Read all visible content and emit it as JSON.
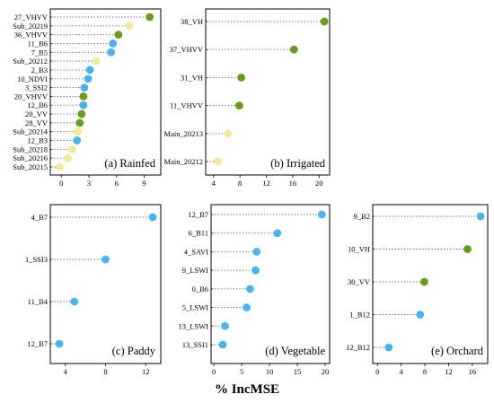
{
  "colors": {
    "yellow": "#f3e89c",
    "green": "#6a9a22",
    "blue": "#4fb3ea"
  },
  "xlabel": "% IncMSE",
  "chart_data": [
    {
      "type": "scatter",
      "title": "(a) Rainfed",
      "xlim": [
        -1.2,
        10.8
      ],
      "xticks": [
        0,
        3,
        6,
        9
      ],
      "grid": false,
      "categories": [
        "27_VHVV",
        "Sub_20219",
        "36_VHVV",
        "11_B6",
        "7_B5",
        "Sub_20212",
        "2_B3",
        "10_NDVI",
        "3_SSI2",
        "20_VHVV",
        "12_B6",
        "20_VV",
        "28_VV",
        "Sub_20214",
        "12_B3",
        "Sub_20218",
        "Sub_20216",
        "Sub_20215"
      ],
      "values": [
        9.6,
        7.4,
        6.2,
        5.6,
        5.4,
        3.8,
        3.1,
        2.9,
        2.5,
        2.4,
        2.4,
        2.2,
        2.0,
        1.8,
        1.7,
        1.2,
        0.7,
        -0.2
      ],
      "colors": [
        "green",
        "yellow",
        "green",
        "blue",
        "blue",
        "yellow",
        "blue",
        "blue",
        "blue",
        "green",
        "blue",
        "green",
        "green",
        "yellow",
        "blue",
        "yellow",
        "yellow",
        "yellow"
      ]
    },
    {
      "type": "scatter",
      "title": "(b) Irrigated",
      "xlim": [
        2.8,
        21.6
      ],
      "xticks": [
        4,
        8,
        12,
        16,
        20
      ],
      "grid": false,
      "categories": [
        "38_VH",
        "37_VHVV",
        "31_VH",
        "11_VHVV",
        "Main_20213",
        "Main_20212"
      ],
      "values": [
        20.8,
        16.2,
        8.2,
        7.9,
        6.2,
        4.6
      ],
      "colors": [
        "green",
        "green",
        "green",
        "green",
        "yellow",
        "yellow"
      ]
    },
    {
      "type": "scatter",
      "title": "(c) Paddy",
      "xlim": [
        2.5,
        13.5
      ],
      "xticks": [
        4,
        8,
        12
      ],
      "grid": false,
      "categories": [
        "4_B7",
        "1_SSI3",
        "11_B4",
        "12_B7"
      ],
      "values": [
        12.7,
        8.0,
        4.9,
        3.4
      ],
      "colors": [
        "blue",
        "blue",
        "blue",
        "blue"
      ]
    },
    {
      "type": "scatter",
      "title": "(d) Vegetable",
      "xlim": [
        -0.5,
        20.8
      ],
      "xticks": [
        0,
        5,
        10,
        15,
        20
      ],
      "grid": false,
      "categories": [
        "12_B7",
        "6_B11",
        "4_SAVI",
        "9_LSWI",
        "0_B6",
        "5_LSWI",
        "13_LSWI",
        "13_SSI1"
      ],
      "values": [
        19.4,
        11.4,
        7.7,
        7.5,
        6.5,
        5.9,
        2.0,
        1.6
      ],
      "colors": [
        "blue",
        "blue",
        "blue",
        "blue",
        "blue",
        "blue",
        "blue",
        "blue"
      ]
    },
    {
      "type": "scatter",
      "title": "(e) Orchard",
      "xlim": [
        -0.8,
        18.6
      ],
      "xticks": [
        0,
        4,
        8,
        12,
        16
      ],
      "grid": false,
      "categories": [
        "9_B2",
        "10_VH",
        "30_VV",
        "1_B12",
        "12_B12"
      ],
      "values": [
        17.4,
        15.2,
        7.9,
        7.2,
        1.9
      ],
      "colors": [
        "blue",
        "green",
        "green",
        "blue",
        "blue"
      ]
    }
  ]
}
